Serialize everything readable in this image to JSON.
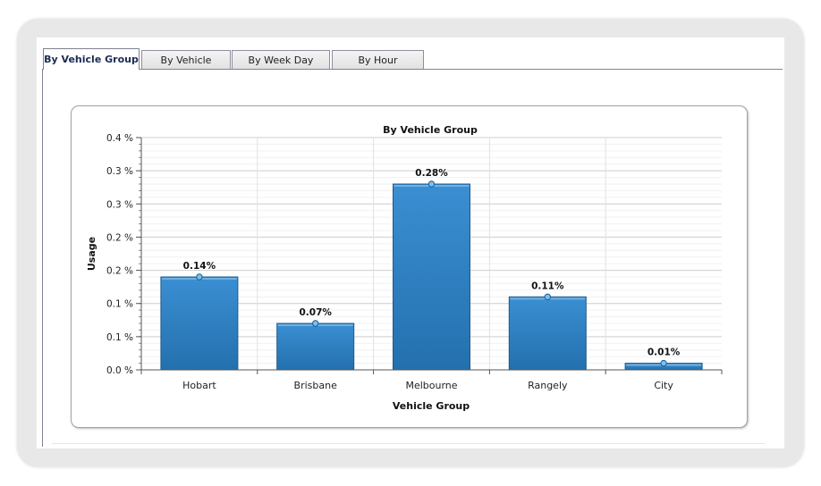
{
  "tabs": [
    {
      "label": "By Vehicle Group",
      "active": true
    },
    {
      "label": "By Vehicle",
      "active": false
    },
    {
      "label": "By Week Day",
      "active": false
    },
    {
      "label": "By Hour",
      "active": false
    }
  ],
  "colors": {
    "bar": "#2f7fc0",
    "bar_dark": "#1f5f96",
    "accent": "#1a2a55"
  },
  "chart_data": {
    "type": "bar",
    "title": "By Vehicle Group",
    "xlabel": "Vehicle Group",
    "ylabel": "Usage",
    "categories": [
      "Hobart",
      "Brisbane",
      "Melbourne",
      "Rangely",
      "City"
    ],
    "values": [
      0.14,
      0.07,
      0.28,
      0.11,
      0.01
    ],
    "data_labels": [
      "0.14%",
      "0.07%",
      "0.28%",
      "0.11%",
      "0.01%"
    ],
    "ylim": [
      0,
      0.35
    ],
    "yticks": [
      0,
      0.05,
      0.1,
      0.15,
      0.2,
      0.25,
      0.3,
      0.35
    ],
    "ytick_labels": [
      "0.0 %",
      "0.1 %",
      "0.1 %",
      "0.2 %",
      "0.2 %",
      "0.3 %",
      "0.3 %",
      "0.4 %"
    ],
    "grid": true
  }
}
